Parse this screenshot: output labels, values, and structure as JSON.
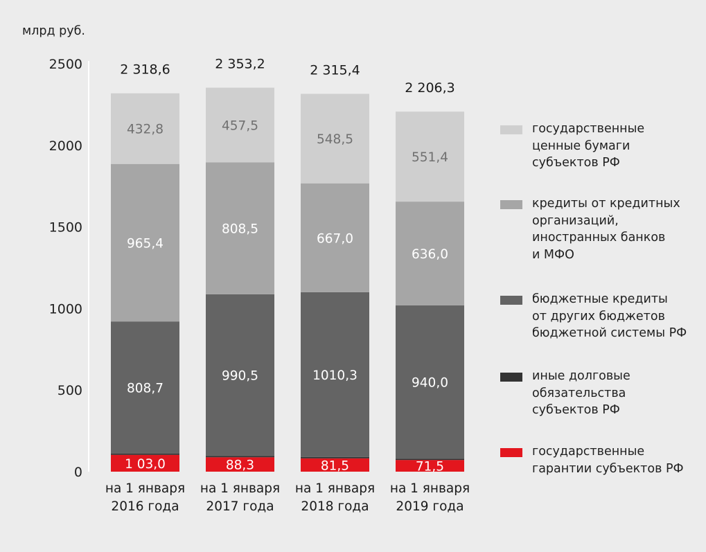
{
  "chart_data": {
    "type": "bar",
    "stacked": true,
    "ylabel": "млрд руб.",
    "ylim": [
      0,
      2500
    ],
    "yticks": [
      0,
      500,
      1000,
      1500,
      2000,
      2500
    ],
    "grid": false,
    "legend_position": "right",
    "categories": [
      "на 1 января\n2016 года",
      "на 1 января\n2017 года",
      "на 1 января\n2018 года",
      "на 1 января\n2019 года"
    ],
    "totals": [
      2318.6,
      2353.2,
      2315.4,
      2206.3
    ],
    "total_labels": [
      "2 318,6",
      "2 353,2",
      "2 315,4",
      "2 206,3"
    ],
    "series": [
      {
        "name": "государственные\nгарантии субъектов РФ",
        "color": "#e3161e",
        "values": [
          103.0,
          88.3,
          81.5,
          71.5
        ],
        "labels": [
          "1 03,0",
          "88,3",
          "81,5",
          "71,5"
        ],
        "label_color": "#ffffff"
      },
      {
        "name": "иные долговые\nобязательства\nсубъектов РФ",
        "color": "#333333",
        "values": [
          8.7,
          8.4,
          8.1,
          7.4
        ],
        "labels": [
          "",
          "",
          "",
          ""
        ],
        "label_color": "#ffffff"
      },
      {
        "name": "бюджетные кредиты\nот других бюджетов\nбюджетной системы РФ",
        "color": "#646464",
        "values": [
          808.7,
          990.5,
          1010.3,
          940.0
        ],
        "labels": [
          "808,7",
          "990,5",
          "1010,3",
          "940,0"
        ],
        "label_color": "#ffffff"
      },
      {
        "name": "кредиты от кредитных\nорганизаций,\nиностранных банков\nи МФО",
        "color": "#a6a6a6",
        "values": [
          965.4,
          808.5,
          667.0,
          636.0
        ],
        "labels": [
          "965,4",
          "808,5",
          "667,0",
          "636,0"
        ],
        "label_color": "#ffffff"
      },
      {
        "name": "государственные\nценные бумаги\nсубъектов РФ",
        "color": "#cfcfcf",
        "values": [
          432.8,
          457.5,
          548.5,
          551.4
        ],
        "labels": [
          "432,8",
          "457,5",
          "548,5",
          "551,4"
        ],
        "label_color": "#707070"
      }
    ],
    "legend_order": [
      4,
      3,
      2,
      1,
      0
    ]
  }
}
